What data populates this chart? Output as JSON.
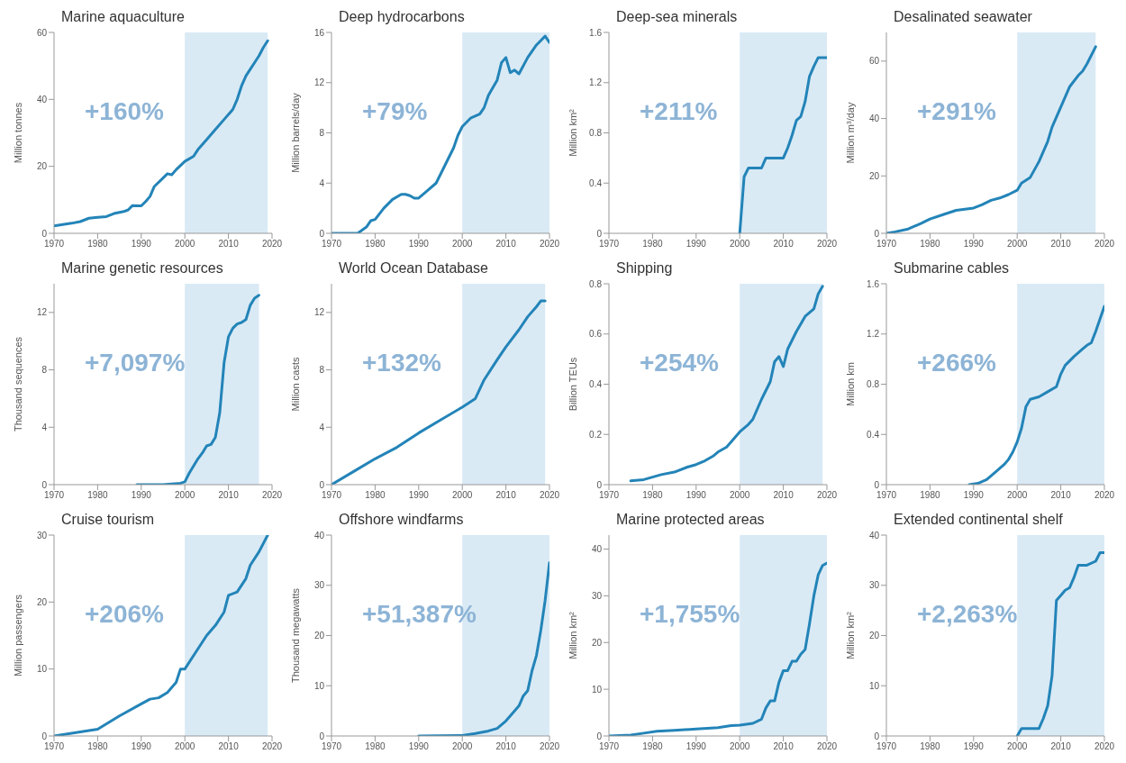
{
  "chart_data": [
    {
      "type": "line",
      "title": "Marine aquaculture",
      "ylabel": "Million tonnes",
      "annotations": [
        "+160%"
      ],
      "color": "#2384b8",
      "xlim": [
        1970,
        2020
      ],
      "xticks": [
        1970,
        1980,
        1990,
        2000,
        2010,
        2020
      ],
      "ylim": [
        0,
        60
      ],
      "yticks": [
        0,
        20,
        40,
        60
      ],
      "bands": [
        {
          "axis": "x",
          "from": 2000,
          "to": 2019,
          "color": "#d9eaf5"
        }
      ],
      "x": [
        1970,
        1972,
        1974,
        1976,
        1978,
        1980,
        1982,
        1984,
        1986,
        1987,
        1988,
        1990,
        1991,
        1992,
        1993,
        1995,
        1996,
        1997,
        1998,
        2000,
        2002,
        2003,
        2005,
        2007,
        2009,
        2011,
        2012,
        2013,
        2014,
        2015,
        2016,
        2017,
        2018,
        2019
      ],
      "values": [
        2.2,
        2.6,
        3,
        3.5,
        4.5,
        4.8,
        5,
        6,
        6.5,
        7,
        8.3,
        8.2,
        9.5,
        11,
        14,
        16.5,
        17.8,
        17.5,
        19,
        21.5,
        23,
        25,
        28,
        31,
        34,
        37,
        40,
        44,
        47,
        49,
        51,
        53,
        55.5,
        57.5
      ]
    },
    {
      "type": "line",
      "title": "Deep hydrocarbons",
      "ylabel": "Million barrels/day",
      "annotations": [
        "+79%"
      ],
      "color": "#2384b8",
      "xlim": [
        1970,
        2020
      ],
      "xticks": [
        1970,
        1980,
        1990,
        2000,
        2010,
        2020
      ],
      "ylim": [
        0,
        16
      ],
      "yticks": [
        0,
        4,
        8,
        12,
        16
      ],
      "bands": [
        {
          "axis": "x",
          "from": 2000,
          "to": 2020,
          "color": "#d9eaf5"
        }
      ],
      "x": [
        1970,
        1976,
        1978,
        1979,
        1980,
        1982,
        1984,
        1986,
        1987,
        1988,
        1989,
        1990,
        1992,
        1994,
        1995,
        1996,
        1998,
        1999,
        2000,
        2002,
        2004,
        2005,
        2006,
        2008,
        2009,
        2010,
        2011,
        2012,
        2013,
        2015,
        2017,
        2019,
        2020
      ],
      "values": [
        0,
        0,
        0.5,
        1,
        1.1,
        2,
        2.7,
        3.1,
        3.1,
        3,
        2.8,
        2.8,
        3.4,
        4,
        4.7,
        5.4,
        6.8,
        7.8,
        8.5,
        9.2,
        9.5,
        10,
        11,
        12.2,
        13.6,
        14,
        12.8,
        13,
        12.7,
        14,
        15,
        15.7,
        15.2
      ]
    },
    {
      "type": "line",
      "title": "Deep-sea minerals",
      "ylabel": "Million km²",
      "annotations": [
        "+211%"
      ],
      "color": "#2384b8",
      "xlim": [
        1970,
        2020
      ],
      "xticks": [
        1970,
        1980,
        1990,
        2000,
        2010,
        2020
      ],
      "ylim": [
        0,
        1.6
      ],
      "yticks": [
        0,
        0.4,
        0.8,
        1.2,
        1.6
      ],
      "bands": [
        {
          "axis": "x",
          "from": 2000,
          "to": 2020,
          "color": "#d9eaf5"
        }
      ],
      "x": [
        2000,
        2001,
        2002,
        2005,
        2006,
        2010,
        2011,
        2012,
        2013,
        2014,
        2015,
        2016,
        2017,
        2018,
        2020
      ],
      "values": [
        0,
        0.45,
        0.52,
        0.52,
        0.6,
        0.6,
        0.68,
        0.78,
        0.9,
        0.93,
        1.05,
        1.25,
        1.33,
        1.4,
        1.4
      ]
    },
    {
      "type": "line",
      "title": "Desalinated seawater",
      "ylabel": "Million m³/day",
      "annotations": [
        "+291%"
      ],
      "color": "#2384b8",
      "xlim": [
        1970,
        2020
      ],
      "xticks": [
        1970,
        1980,
        1990,
        2000,
        2010,
        2020
      ],
      "ylim": [
        0,
        70
      ],
      "yticks": [
        0,
        20,
        40,
        60
      ],
      "bands": [
        {
          "axis": "x",
          "from": 2000,
          "to": 2018,
          "color": "#d9eaf5"
        }
      ],
      "x": [
        1970,
        1972,
        1975,
        1978,
        1980,
        1983,
        1986,
        1990,
        1992,
        1994,
        1996,
        1998,
        2000,
        2001,
        2003,
        2005,
        2007,
        2008,
        2010,
        2012,
        2014,
        2015,
        2016,
        2018
      ],
      "values": [
        0,
        0.5,
        1.5,
        3.5,
        5,
        6.5,
        8,
        8.8,
        10,
        11.5,
        12.3,
        13.5,
        15,
        17.5,
        19.5,
        25,
        32,
        37,
        44,
        51,
        55,
        56.5,
        59,
        65
      ]
    },
    {
      "type": "line",
      "title": "Marine genetic resources",
      "ylabel": "Thousand sequences",
      "annotations": [
        "+7,097%"
      ],
      "color": "#2384b8",
      "xlim": [
        1970,
        2020
      ],
      "xticks": [
        1970,
        1980,
        1990,
        2000,
        2010,
        2020
      ],
      "ylim": [
        0,
        14
      ],
      "yticks": [
        0,
        4,
        8,
        12
      ],
      "bands": [
        {
          "axis": "x",
          "from": 2000,
          "to": 2017,
          "color": "#d9eaf5"
        }
      ],
      "x": [
        1989,
        1995,
        1999,
        2000,
        2001,
        2002,
        2003,
        2004,
        2005,
        2006,
        2007,
        2008,
        2009,
        2010,
        2011,
        2012,
        2013,
        2014,
        2015,
        2016,
        2017
      ],
      "values": [
        0,
        0,
        0.1,
        0.2,
        0.8,
        1.3,
        1.8,
        2.2,
        2.7,
        2.8,
        3.3,
        5,
        8.5,
        10.3,
        10.9,
        11.2,
        11.3,
        11.5,
        12.5,
        13,
        13.2
      ]
    },
    {
      "type": "line",
      "title": "World Ocean Database",
      "ylabel": "Million casts",
      "annotations": [
        "+132%"
      ],
      "color": "#2384b8",
      "xlim": [
        1970,
        2020
      ],
      "xticks": [
        1970,
        1980,
        1990,
        2000,
        2010,
        2020
      ],
      "ylim": [
        0,
        14
      ],
      "yticks": [
        0,
        4,
        8,
        12
      ],
      "bands": [
        {
          "axis": "x",
          "from": 2000,
          "to": 2019,
          "color": "#d9eaf5"
        }
      ],
      "x": [
        1970,
        1975,
        1980,
        1985,
        1990,
        1995,
        2000,
        2003,
        2005,
        2008,
        2010,
        2013,
        2015,
        2017,
        2018,
        2019
      ],
      "values": [
        0,
        0.9,
        1.8,
        2.6,
        3.6,
        4.5,
        5.4,
        6,
        7.3,
        8.7,
        9.6,
        10.8,
        11.7,
        12.4,
        12.8,
        12.8
      ]
    },
    {
      "type": "line",
      "title": "Shipping",
      "ylabel": "Billion TEUs",
      "annotations": [
        "+254%"
      ],
      "color": "#2384b8",
      "xlim": [
        1970,
        2020
      ],
      "xticks": [
        1970,
        1980,
        1990,
        2000,
        2010,
        2020
      ],
      "ylim": [
        0,
        0.8
      ],
      "yticks": [
        0,
        0.2,
        0.4,
        0.6,
        0.8
      ],
      "bands": [
        {
          "axis": "x",
          "from": 2000,
          "to": 2019,
          "color": "#d9eaf5"
        }
      ],
      "x": [
        1975,
        1978,
        1980,
        1982,
        1985,
        1988,
        1990,
        1992,
        1994,
        1995,
        1997,
        2000,
        2002,
        2003,
        2005,
        2007,
        2008,
        2009,
        2010,
        2011,
        2013,
        2015,
        2017,
        2018,
        2019
      ],
      "values": [
        0.015,
        0.02,
        0.03,
        0.04,
        0.05,
        0.07,
        0.08,
        0.095,
        0.115,
        0.13,
        0.15,
        0.21,
        0.24,
        0.26,
        0.34,
        0.41,
        0.49,
        0.51,
        0.47,
        0.54,
        0.61,
        0.67,
        0.7,
        0.76,
        0.79
      ]
    },
    {
      "type": "line",
      "title": "Submarine cables",
      "ylabel": "Million km",
      "annotations": [
        "+266%"
      ],
      "color": "#2384b8",
      "xlim": [
        1970,
        2020
      ],
      "xticks": [
        1970,
        1980,
        1990,
        2000,
        2010,
        2020
      ],
      "ylim": [
        0,
        1.6
      ],
      "yticks": [
        0,
        0.4,
        0.8,
        1.2,
        1.6
      ],
      "bands": [
        {
          "axis": "x",
          "from": 2000,
          "to": 2020,
          "color": "#d9eaf5"
        }
      ],
      "x": [
        1989,
        1991,
        1993,
        1995,
        1997,
        1998,
        1999,
        2000,
        2001,
        2002,
        2003,
        2005,
        2007,
        2009,
        2010,
        2011,
        2013,
        2015,
        2016,
        2017,
        2018,
        2019,
        2020
      ],
      "values": [
        0,
        0.01,
        0.04,
        0.1,
        0.16,
        0.2,
        0.26,
        0.34,
        0.45,
        0.62,
        0.68,
        0.7,
        0.74,
        0.78,
        0.88,
        0.95,
        1.02,
        1.08,
        1.11,
        1.13,
        1.22,
        1.32,
        1.42
      ]
    },
    {
      "type": "line",
      "title": "Cruise tourism",
      "ylabel": "Million passengers",
      "annotations": [
        "+206%"
      ],
      "color": "#2384b8",
      "xlim": [
        1970,
        2020
      ],
      "xticks": [
        1970,
        1980,
        1990,
        2000,
        2010,
        2020
      ],
      "ylim": [
        0,
        30
      ],
      "yticks": [
        0,
        10,
        20,
        30
      ],
      "bands": [
        {
          "axis": "x",
          "from": 2000,
          "to": 2019,
          "color": "#d9eaf5"
        }
      ],
      "x": [
        1970,
        1975,
        1980,
        1985,
        1990,
        1992,
        1994,
        1996,
        1998,
        1999,
        2000,
        2002,
        2005,
        2007,
        2009,
        2010,
        2012,
        2014,
        2015,
        2017,
        2019
      ],
      "values": [
        0,
        0.5,
        1,
        3,
        4.8,
        5.5,
        5.7,
        6.5,
        8,
        10,
        10,
        12,
        15,
        16.5,
        18.5,
        21,
        21.5,
        23.5,
        25.5,
        27.5,
        30
      ]
    },
    {
      "type": "line",
      "title": "Offshore windfarms",
      "ylabel": "Thousand megawatts",
      "annotations": [
        "+51,387%"
      ],
      "color": "#2384b8",
      "xlim": [
        1970,
        2020
      ],
      "xticks": [
        1970,
        1980,
        1990,
        2000,
        2010,
        2020
      ],
      "ylim": [
        0,
        40
      ],
      "yticks": [
        0,
        10,
        20,
        30,
        40
      ],
      "bands": [
        {
          "axis": "x",
          "from": 2000,
          "to": 2020,
          "color": "#d9eaf5"
        }
      ],
      "x": [
        1990,
        2000,
        2003,
        2006,
        2008,
        2010,
        2011,
        2013,
        2014,
        2015,
        2016,
        2017,
        2018,
        2019,
        2020
      ],
      "values": [
        0,
        0.1,
        0.5,
        1,
        1.5,
        3,
        4,
        6,
        8,
        9,
        13,
        16,
        21,
        27,
        34.5
      ]
    },
    {
      "type": "line",
      "title": "Marine protected areas",
      "ylabel": "Million km²",
      "annotations": [
        "+1,755%"
      ],
      "color": "#2384b8",
      "xlim": [
        1970,
        2020
      ],
      "xticks": [
        1970,
        1980,
        1990,
        2000,
        2010,
        2020
      ],
      "ylim": [
        0,
        43
      ],
      "yticks": [
        0,
        10,
        20,
        30,
        40
      ],
      "bands": [
        {
          "axis": "x",
          "from": 2000,
          "to": 2020,
          "color": "#d9eaf5"
        }
      ],
      "x": [
        1970,
        1975,
        1978,
        1981,
        1985,
        1990,
        1995,
        1998,
        2000,
        2003,
        2005,
        2006,
        2007,
        2008,
        2009,
        2010,
        2011,
        2012,
        2013,
        2014,
        2015,
        2016,
        2017,
        2018,
        2019,
        2020
      ],
      "values": [
        0,
        0.2,
        0.6,
        1,
        1.2,
        1.5,
        1.8,
        2.2,
        2.3,
        2.7,
        3.6,
        6,
        7.5,
        7.5,
        11.5,
        14,
        14,
        16,
        16,
        17.5,
        18.5,
        24,
        30,
        34.5,
        36.5,
        37
      ]
    },
    {
      "type": "line",
      "title": "Extended continental shelf",
      "ylabel": "Million km²",
      "annotations": [
        "+2,263%"
      ],
      "color": "#2384b8",
      "xlim": [
        1970,
        2020
      ],
      "xticks": [
        1970,
        1980,
        1990,
        2000,
        2010,
        2020
      ],
      "ylim": [
        0,
        40
      ],
      "yticks": [
        0,
        10,
        20,
        30,
        40
      ],
      "bands": [
        {
          "axis": "x",
          "from": 2000,
          "to": 2020,
          "color": "#d9eaf5"
        }
      ],
      "x": [
        2000,
        2001,
        2005,
        2006,
        2007,
        2008,
        2009,
        2010,
        2011,
        2012,
        2013,
        2014,
        2016,
        2018,
        2019,
        2020
      ],
      "values": [
        0,
        1.5,
        1.5,
        3.5,
        6,
        12,
        27,
        28,
        29,
        29.5,
        31.5,
        34,
        34,
        34.8,
        36.5,
        36.5
      ]
    }
  ]
}
